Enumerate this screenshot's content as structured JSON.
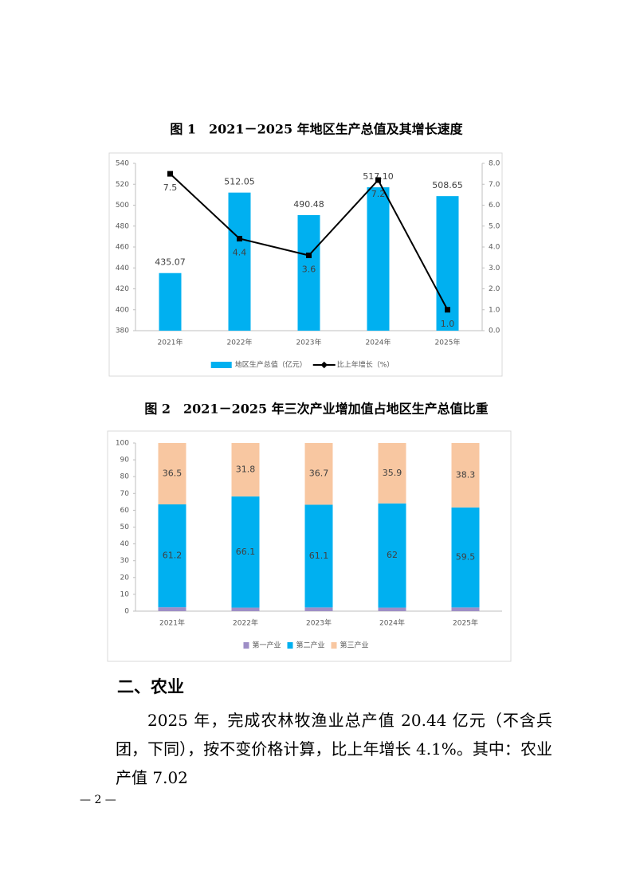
{
  "chart_data": [
    {
      "type": "combo",
      "title": "图 1　2021－2025 年地区生产总值及其增长速度",
      "categories": [
        "2021年",
        "2022年",
        "2023年",
        "2024年",
        "2025年"
      ],
      "series": [
        {
          "name": "地区生产总值（亿元）",
          "type": "bar",
          "color": "#00b0f0",
          "values": [
            435.07,
            512.05,
            490.48,
            517.1,
            508.65
          ],
          "value_labels": [
            "435.07",
            "512.05",
            "490.48",
            "517.10",
            "508.65"
          ]
        },
        {
          "name": "比上年增长（%）",
          "type": "line",
          "axis": "y2",
          "color": "#000000",
          "values": [
            7.5,
            4.4,
            3.6,
            7.2,
            1.0
          ],
          "value_labels": [
            "7.5",
            "4.4",
            "3.6",
            "7.2",
            "1.0"
          ]
        }
      ],
      "ylim": [
        380,
        540
      ],
      "yticks": [
        380,
        400,
        420,
        440,
        460,
        480,
        500,
        520,
        540
      ],
      "y2lim": [
        0,
        8
      ],
      "y2ticks": [
        {
          "value": 0,
          "label": "0.0"
        },
        {
          "value": 1,
          "label": "1.0"
        },
        {
          "value": 2,
          "label": "2.0"
        },
        {
          "value": 3,
          "label": "3.0"
        },
        {
          "value": 4,
          "label": "4.0"
        },
        {
          "value": 5,
          "label": "5.0"
        },
        {
          "value": 6,
          "label": "6.0"
        },
        {
          "value": 7,
          "label": "7.0"
        },
        {
          "value": 8,
          "label": "8.0"
        }
      ],
      "grid": false,
      "legend": "bottom"
    },
    {
      "type": "stacked_bar",
      "title": "图 2　2021－2025 年三次产业增加值占地区生产总值比重",
      "categories": [
        "2021年",
        "2022年",
        "2023年",
        "2024年",
        "2025年"
      ],
      "series": [
        {
          "name": "第一产业",
          "color": "#9e8ec6",
          "values": [
            2.3,
            2.1,
            2.2,
            2.1,
            2.2
          ]
        },
        {
          "name": "第二产业",
          "color": "#00b0f0",
          "values": [
            61.2,
            66.1,
            61.1,
            62,
            59.5
          ]
        },
        {
          "name": "第三产业",
          "color": "#f8c7a1",
          "values": [
            36.5,
            31.8,
            36.7,
            35.9,
            38.3
          ]
        }
      ],
      "ylim": [
        0,
        100
      ],
      "yticks": [
        0,
        10,
        20,
        30,
        40,
        50,
        60,
        70,
        80,
        90,
        100
      ],
      "grid": false,
      "legend": "bottom"
    }
  ],
  "document": {
    "section_heading": "二、农业",
    "paragraph": "2025 年，完成农林牧渔业总产值 20.44 亿元（不含兵团，下同），按不变价格计算，比上年增长 4.1%。其中：农业产值 7.02",
    "page_number": "— 2 —"
  }
}
